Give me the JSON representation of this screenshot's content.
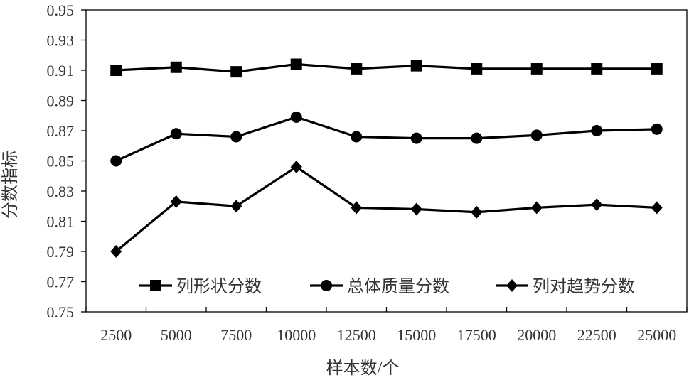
{
  "chart_data": {
    "type": "line",
    "title": "",
    "xlabel": "样本数/个",
    "ylabel": "分数指标",
    "categories": [
      "2500",
      "5000",
      "7500",
      "10000",
      "12500",
      "15000",
      "17500",
      "20000",
      "22500",
      "25000"
    ],
    "ylim": [
      0.75,
      0.95
    ],
    "yticks": [
      "0.75",
      "0.77",
      "0.79",
      "0.81",
      "0.83",
      "0.85",
      "0.87",
      "0.89",
      "0.91",
      "0.93",
      "0.95"
    ],
    "grid": false,
    "legend_position": "bottom-inside",
    "series": [
      {
        "name": "列形状分数",
        "marker": "square",
        "values": [
          0.91,
          0.912,
          0.909,
          0.914,
          0.911,
          0.913,
          0.911,
          0.911,
          0.911,
          0.911
        ]
      },
      {
        "name": "总体质量分数",
        "marker": "circle",
        "values": [
          0.85,
          0.868,
          0.866,
          0.879,
          0.866,
          0.865,
          0.865,
          0.867,
          0.87,
          0.871
        ]
      },
      {
        "name": "列对趋势分数",
        "marker": "diamond",
        "values": [
          0.79,
          0.823,
          0.82,
          0.846,
          0.819,
          0.818,
          0.816,
          0.819,
          0.821,
          0.819
        ]
      }
    ],
    "colors": {
      "line": "#000000",
      "axis": "#000000",
      "text": "#333333"
    }
  }
}
